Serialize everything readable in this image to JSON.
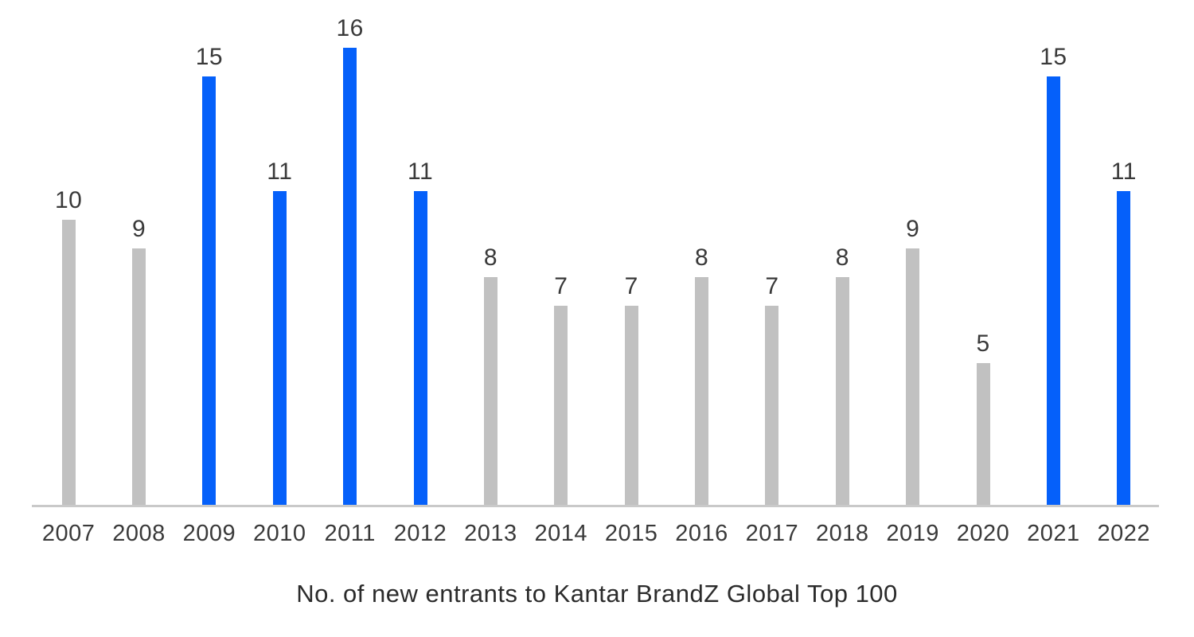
{
  "chart_data": {
    "type": "bar",
    "title": "No. of new entrants to Kantar BrandZ Global Top 100",
    "categories": [
      "2007",
      "2008",
      "2009",
      "2010",
      "2011",
      "2012",
      "2013",
      "2014",
      "2015",
      "2016",
      "2017",
      "2018",
      "2019",
      "2020",
      "2021",
      "2022"
    ],
    "values": [
      10,
      9,
      15,
      11,
      16,
      11,
      8,
      7,
      7,
      8,
      7,
      8,
      9,
      5,
      15,
      11
    ],
    "highlighted": [
      false,
      false,
      true,
      true,
      true,
      true,
      false,
      false,
      false,
      false,
      false,
      false,
      false,
      false,
      true,
      true
    ],
    "data_labels": true,
    "xlabel": "",
    "ylabel": "",
    "ylim": [
      0,
      16
    ],
    "grid": false,
    "legend": false,
    "colors": {
      "highlight_bar": "#0560fa",
      "default_bar": "#c1c1c1",
      "axis_line": "#c9c9c9",
      "label_text": "#3a3a3a",
      "title_text": "#2b2b2b"
    }
  }
}
